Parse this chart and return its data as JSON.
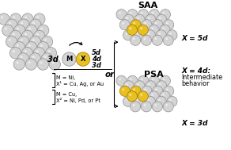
{
  "bg_color": "#ffffff",
  "atom_gray_light": "#d4d4d4",
  "atom_gray_edge": "#909090",
  "atom_yellow": "#e8c020",
  "atom_yellow_edge": "#a07808",
  "label_M": "M",
  "label_X": "X",
  "label_3d_left": "3d",
  "label_3d": "3d",
  "label_4d": "4d",
  "label_5d": "5d",
  "label_SAA": "SAA",
  "label_PSA": "PSA",
  "label_or": "or",
  "label_X5d": "X = 5d",
  "label_X4d": "X = 4d:",
  "label_intermediate": "Intermediate",
  "label_behavior": "behavior",
  "label_X3d": "X = 3d",
  "eq1_line1": "M = Ni,",
  "eq1_line2": "X¹ = Cu, Ag, or Au",
  "eq2_line1": "M = Cu,",
  "eq2_line2": "X² = Ni, Pd, or Pt",
  "figsize": [
    2.92,
    1.89
  ],
  "dpi": 100
}
